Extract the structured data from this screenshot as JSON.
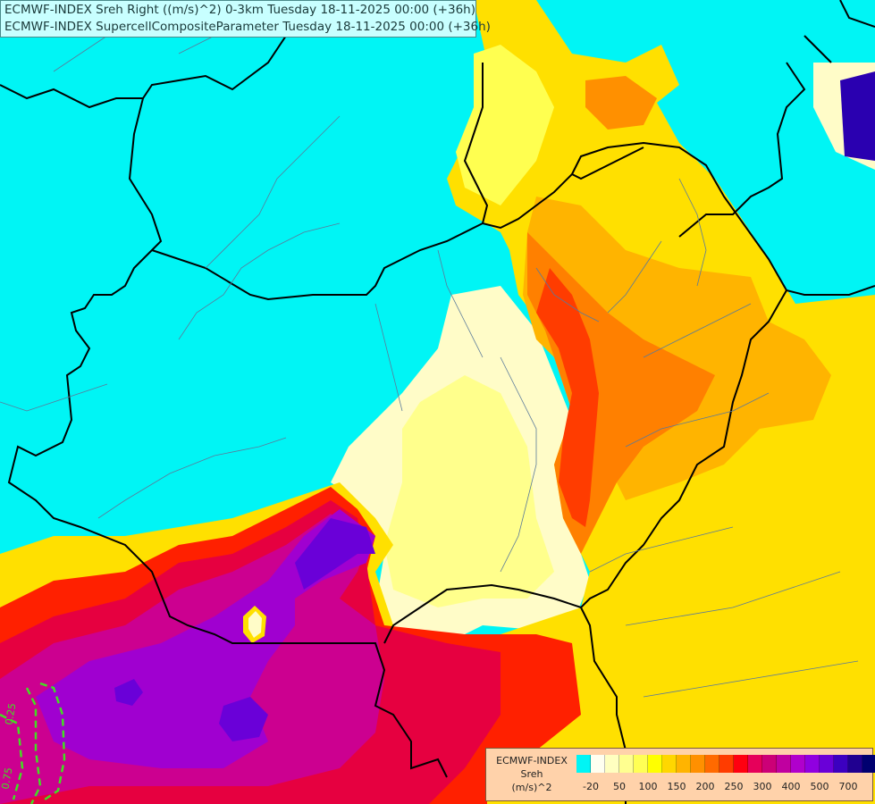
{
  "title": {
    "line1": "ECMWF-INDEX Sreh Right ((m/s)^2) 0-3km Tuesday 18-11-2025 00:00 (+36h)",
    "line2": "ECMWF-INDEX SupercellCompositeParameter Tuesday 18-11-2025 00:00 (+36h)"
  },
  "legend": {
    "line1": "ECMWF-INDEX",
    "line2": "Sreh",
    "line3": "(m/s)^2",
    "colors": [
      "#00f5f5",
      "#fffff0",
      "#ffffc0",
      "#ffff90",
      "#ffff55",
      "#ffff00",
      "#ffd700",
      "#ffb400",
      "#ff9000",
      "#ff6a00",
      "#ff3c00",
      "#ff0010",
      "#e6005a",
      "#cc0077",
      "#c000a0",
      "#b000cc",
      "#9000e0",
      "#6a00d8",
      "#3c00c0",
      "#200090",
      "#000070"
    ],
    "ticks": [
      "-20",
      "50",
      "100",
      "150",
      "200",
      "250",
      "300",
      "400",
      "500",
      "700"
    ]
  },
  "contour_labels": {
    "a": "0.25",
    "b": "0.75"
  }
}
